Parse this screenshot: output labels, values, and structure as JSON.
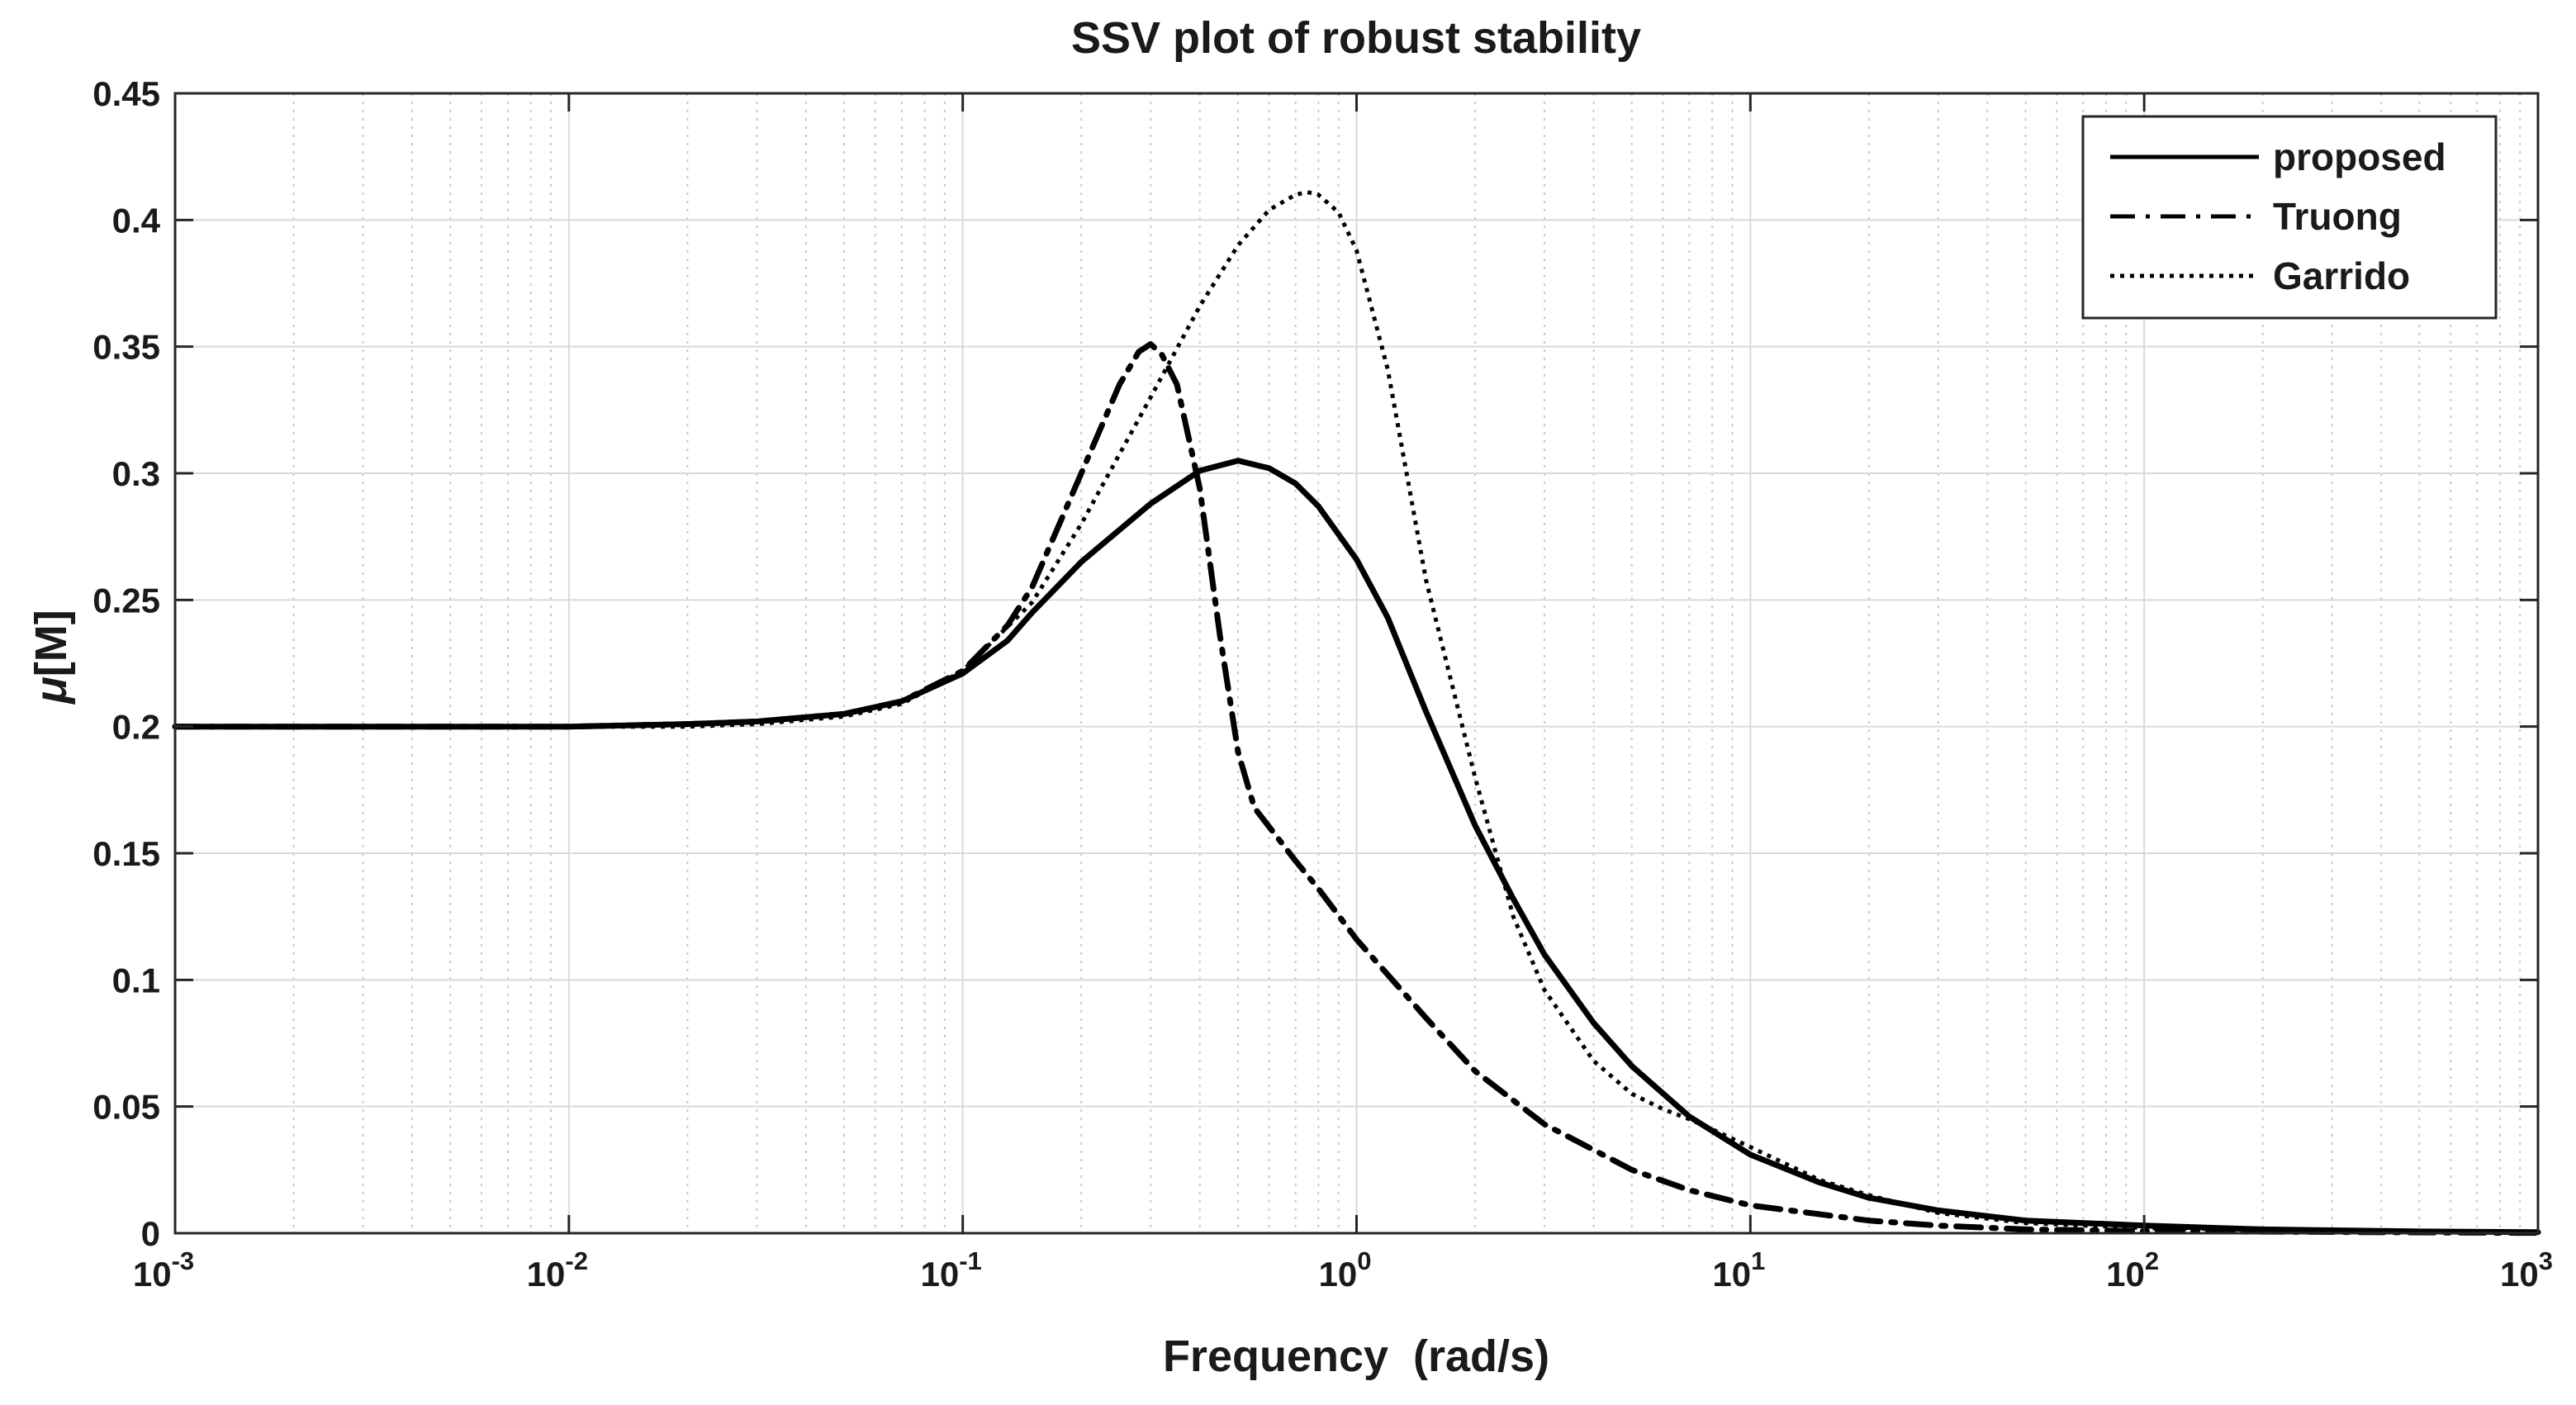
{
  "chart_data": {
    "type": "line",
    "title": "SSV plot of robust stability",
    "xlabel": "Frequency  (rad/s)",
    "ylabel_greek": "μ",
    "ylabel_rest": "[M]",
    "xscale": "log",
    "xlim": [
      0.001,
      1000
    ],
    "ylim": [
      0,
      0.45
    ],
    "grid": true,
    "legend_position": "top-right",
    "x_tick_base": "10",
    "x_ticks": [
      {
        "value": 0.001,
        "exp": "-3"
      },
      {
        "value": 0.01,
        "exp": "-2"
      },
      {
        "value": 0.1,
        "exp": "-1"
      },
      {
        "value": 1,
        "exp": "0"
      },
      {
        "value": 10,
        "exp": "1"
      },
      {
        "value": 100,
        "exp": "2"
      },
      {
        "value": 1000,
        "exp": "3"
      }
    ],
    "y_ticks": [
      {
        "value": 0,
        "label": "0"
      },
      {
        "value": 0.05,
        "label": "0.05"
      },
      {
        "value": 0.1,
        "label": "0.1"
      },
      {
        "value": 0.15,
        "label": "0.15"
      },
      {
        "value": 0.2,
        "label": "0.2"
      },
      {
        "value": 0.25,
        "label": "0.25"
      },
      {
        "value": 0.3,
        "label": "0.3"
      },
      {
        "value": 0.35,
        "label": "0.35"
      },
      {
        "value": 0.4,
        "label": "0.4"
      },
      {
        "value": 0.45,
        "label": "0.45"
      }
    ],
    "series": [
      {
        "name": "proposed",
        "style": "solid",
        "color": "#000000",
        "points": [
          [
            0.001,
            0.2
          ],
          [
            0.01,
            0.2
          ],
          [
            0.02,
            0.201
          ],
          [
            0.03,
            0.202
          ],
          [
            0.05,
            0.205
          ],
          [
            0.07,
            0.21
          ],
          [
            0.1,
            0.221
          ],
          [
            0.13,
            0.234
          ],
          [
            0.15,
            0.245
          ],
          [
            0.2,
            0.265
          ],
          [
            0.3,
            0.288
          ],
          [
            0.4,
            0.301
          ],
          [
            0.5,
            0.305
          ],
          [
            0.6,
            0.302
          ],
          [
            0.7,
            0.296
          ],
          [
            0.8,
            0.287
          ],
          [
            1.0,
            0.266
          ],
          [
            1.2,
            0.243
          ],
          [
            1.5,
            0.206
          ],
          [
            2.0,
            0.161
          ],
          [
            2.5,
            0.132
          ],
          [
            3.0,
            0.11
          ],
          [
            4.0,
            0.083
          ],
          [
            5.0,
            0.066
          ],
          [
            7.0,
            0.046
          ],
          [
            10,
            0.031
          ],
          [
            15,
            0.02
          ],
          [
            20,
            0.014
          ],
          [
            30,
            0.009
          ],
          [
            50,
            0.005
          ],
          [
            100,
            0.003
          ],
          [
            200,
            0.0015
          ],
          [
            500,
            0.0007
          ],
          [
            1000,
            0.0004
          ]
        ]
      },
      {
        "name": "Truong",
        "style": "dashdot",
        "color": "#000000",
        "points": [
          [
            0.001,
            0.2
          ],
          [
            0.01,
            0.2
          ],
          [
            0.02,
            0.201
          ],
          [
            0.03,
            0.202
          ],
          [
            0.05,
            0.205
          ],
          [
            0.07,
            0.21
          ],
          [
            0.1,
            0.222
          ],
          [
            0.13,
            0.24
          ],
          [
            0.15,
            0.255
          ],
          [
            0.2,
            0.3
          ],
          [
            0.25,
            0.335
          ],
          [
            0.28,
            0.348
          ],
          [
            0.3,
            0.351
          ],
          [
            0.32,
            0.347
          ],
          [
            0.35,
            0.335
          ],
          [
            0.4,
            0.294
          ],
          [
            0.45,
            0.236
          ],
          [
            0.5,
            0.19
          ],
          [
            0.55,
            0.168
          ],
          [
            0.7,
            0.147
          ],
          [
            0.8,
            0.136
          ],
          [
            1.0,
            0.116
          ],
          [
            1.5,
            0.085
          ],
          [
            2.0,
            0.064
          ],
          [
            3.0,
            0.043
          ],
          [
            5.0,
            0.025
          ],
          [
            7.0,
            0.017
          ],
          [
            10,
            0.011
          ],
          [
            20,
            0.005
          ],
          [
            30,
            0.003
          ],
          [
            50,
            0.0015
          ],
          [
            100,
            0.0008
          ],
          [
            1000,
            0.0001
          ]
        ]
      },
      {
        "name": "Garrido",
        "style": "dotted",
        "color": "#000000",
        "points": [
          [
            0.001,
            0.2
          ],
          [
            0.01,
            0.2
          ],
          [
            0.02,
            0.2
          ],
          [
            0.03,
            0.201
          ],
          [
            0.05,
            0.204
          ],
          [
            0.07,
            0.209
          ],
          [
            0.1,
            0.222
          ],
          [
            0.15,
            0.249
          ],
          [
            0.2,
            0.28
          ],
          [
            0.3,
            0.33
          ],
          [
            0.4,
            0.366
          ],
          [
            0.5,
            0.39
          ],
          [
            0.6,
            0.404
          ],
          [
            0.7,
            0.41
          ],
          [
            0.75,
            0.411
          ],
          [
            0.8,
            0.41
          ],
          [
            0.9,
            0.403
          ],
          [
            1.0,
            0.388
          ],
          [
            1.2,
            0.341
          ],
          [
            1.5,
            0.258
          ],
          [
            2.0,
            0.18
          ],
          [
            2.5,
            0.125
          ],
          [
            3.0,
            0.096
          ],
          [
            4.0,
            0.068
          ],
          [
            5.0,
            0.055
          ],
          [
            6.0,
            0.049
          ],
          [
            7.0,
            0.045
          ],
          [
            8.0,
            0.041
          ],
          [
            10,
            0.034
          ],
          [
            15,
            0.021
          ],
          [
            20,
            0.015
          ],
          [
            30,
            0.008
          ],
          [
            50,
            0.004
          ],
          [
            100,
            0.002
          ],
          [
            1000,
            0.0003
          ]
        ]
      }
    ]
  }
}
